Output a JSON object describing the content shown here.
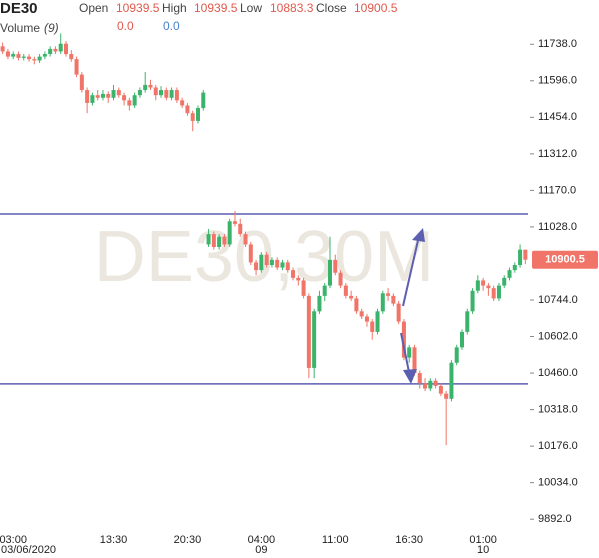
{
  "header": {
    "symbol": "DE30",
    "open_label": "Open",
    "open": "10939.5",
    "high_label": "High",
    "high": "10939.5",
    "low_label": "Low",
    "low": "10883.3",
    "close_label": "Close",
    "close": "10900.5",
    "volume_label": "Volume",
    "volume_period": "(9)",
    "volume_value_1": "0.0",
    "volume_value_2": "0.0"
  },
  "chart_data": {
    "type": "candlestick",
    "watermark": "DE30,30M",
    "up_color": "#3bb36b",
    "down_color": "#f07467",
    "hline_color": "#5c5fb0",
    "ylim": [
      9850,
      11910
    ],
    "yticks": [
      {
        "value": 11738,
        "label": "11738.0"
      },
      {
        "value": 11596,
        "label": "11596.0"
      },
      {
        "value": 11454,
        "label": "11454.0"
      },
      {
        "value": 11312,
        "label": "11312.0"
      },
      {
        "value": 11170,
        "label": "11170.0"
      },
      {
        "value": 11028,
        "label": "11028.0"
      },
      {
        "value": 10744,
        "label": "10744.0"
      },
      {
        "value": 10602,
        "label": "10602.0"
      },
      {
        "value": 10460,
        "label": "10460.0"
      },
      {
        "value": 10318,
        "label": "10318.0"
      },
      {
        "value": 10176,
        "label": "10176.0"
      },
      {
        "value": 10034,
        "label": "10034.0"
      },
      {
        "value": 9892,
        "label": "9892.0"
      }
    ],
    "hlines": [
      11078,
      10418
    ],
    "categories": [
      null,
      null,
      "03:00",
      null,
      null,
      null,
      null,
      null,
      null,
      null,
      null,
      null,
      null,
      null,
      null,
      null,
      null,
      null,
      null,
      null,
      null,
      "13:30",
      null,
      null,
      null,
      null,
      null,
      null,
      null,
      null,
      null,
      null,
      null,
      null,
      null,
      "20:30",
      null,
      null,
      null,
      null,
      null,
      null,
      null,
      null,
      null,
      null,
      null,
      null,
      null,
      "04:00",
      null,
      null,
      null,
      null,
      null,
      null,
      null,
      null,
      null,
      null,
      null,
      null,
      null,
      "11:00",
      null,
      null,
      null,
      null,
      null,
      null,
      null,
      null,
      null,
      null,
      null,
      null,
      null,
      "16:30",
      null,
      null,
      null,
      null,
      null,
      null,
      null,
      null,
      null,
      null,
      null,
      null,
      null,
      "01:00",
      null,
      null,
      null,
      null,
      null,
      null,
      null,
      null
    ],
    "x_sublabels": [
      null,
      null,
      "03/06/2020",
      null,
      null,
      null,
      null,
      null,
      null,
      null,
      null,
      null,
      null,
      null,
      null,
      null,
      null,
      null,
      null,
      null,
      null,
      null,
      null,
      null,
      null,
      null,
      null,
      null,
      null,
      null,
      null,
      null,
      null,
      null,
      null,
      null,
      null,
      null,
      null,
      null,
      null,
      null,
      null,
      null,
      null,
      null,
      null,
      null,
      null,
      "09",
      null,
      null,
      null,
      null,
      null,
      null,
      null,
      null,
      null,
      null,
      null,
      null,
      null,
      null,
      null,
      null,
      null,
      null,
      null,
      null,
      null,
      null,
      null,
      null,
      null,
      null,
      null,
      null,
      null,
      null,
      null,
      null,
      null,
      null,
      null,
      null,
      null,
      null,
      null,
      null,
      null,
      "10",
      null,
      null,
      null,
      null,
      null,
      null,
      null,
      null
    ],
    "candles": [
      [
        11730,
        11745,
        11700,
        11710
      ],
      [
        11710,
        11720,
        11680,
        11690
      ],
      [
        11690,
        11710,
        11680,
        11700
      ],
      [
        11700,
        11710,
        11675,
        11685
      ],
      [
        11685,
        11700,
        11675,
        11690
      ],
      [
        11690,
        11700,
        11670,
        11680
      ],
      [
        11680,
        11690,
        11660,
        11675
      ],
      [
        11675,
        11700,
        11665,
        11690
      ],
      [
        11690,
        11710,
        11680,
        11700
      ],
      [
        11700,
        11730,
        11690,
        11720
      ],
      [
        11720,
        11730,
        11700,
        11710
      ],
      [
        11710,
        11780,
        11700,
        11740
      ],
      [
        11740,
        11750,
        11690,
        11700
      ],
      [
        11700,
        11715,
        11670,
        11680
      ],
      [
        11680,
        11690,
        11610,
        11620
      ],
      [
        11620,
        11630,
        11550,
        11560
      ],
      [
        11560,
        11570,
        11470,
        11510
      ],
      [
        11510,
        11550,
        11500,
        11540
      ],
      [
        11540,
        11560,
        11520,
        11530
      ],
      [
        11530,
        11560,
        11520,
        11545
      ],
      [
        11545,
        11555,
        11510,
        11530
      ],
      [
        11530,
        11580,
        11520,
        11560
      ],
      [
        11560,
        11570,
        11530,
        11540
      ],
      [
        11540,
        11550,
        11500,
        11520
      ],
      [
        11520,
        11530,
        11480,
        11500
      ],
      [
        11500,
        11550,
        11490,
        11540
      ],
      [
        11540,
        11570,
        11530,
        11560
      ],
      [
        11560,
        11630,
        11550,
        11580
      ],
      [
        11580,
        11600,
        11560,
        11570
      ],
      [
        11570,
        11580,
        11520,
        11540
      ],
      [
        11540,
        11575,
        11530,
        11560
      ],
      [
        11560,
        11570,
        11520,
        11530
      ],
      [
        11530,
        11570,
        11520,
        11560
      ],
      [
        11560,
        11570,
        11510,
        11520
      ],
      [
        11520,
        11530,
        11490,
        11500
      ],
      [
        11500,
        11510,
        11460,
        11470
      ],
      [
        11470,
        11480,
        11400,
        11440
      ],
      [
        11440,
        11500,
        11430,
        11490
      ],
      [
        11490,
        11560,
        11480,
        11550
      ],
      [
        10960,
        11020,
        10950,
        11000
      ],
      [
        11000,
        11010,
        10940,
        10950
      ],
      [
        10950,
        11000,
        10940,
        10990
      ],
      [
        10990,
        11000,
        10950,
        10960
      ],
      [
        10960,
        11060,
        10950,
        11050
      ],
      [
        11050,
        11090,
        11030,
        11040
      ],
      [
        11040,
        11060,
        10990,
        11000
      ],
      [
        11000,
        11010,
        10950,
        10960
      ],
      [
        10960,
        10970,
        10880,
        10890
      ],
      [
        10890,
        10900,
        10840,
        10860
      ],
      [
        10860,
        10930,
        10850,
        10920
      ],
      [
        10920,
        10930,
        10870,
        10880
      ],
      [
        10880,
        10910,
        10870,
        10900
      ],
      [
        10900,
        10910,
        10860,
        10870
      ],
      [
        10870,
        10900,
        10860,
        10890
      ],
      [
        10890,
        10900,
        10850,
        10860
      ],
      [
        10860,
        10870,
        10820,
        10830
      ],
      [
        10830,
        10840,
        10800,
        10820
      ],
      [
        10820,
        10830,
        10750,
        10760
      ],
      [
        10760,
        10770,
        10440,
        10480
      ],
      [
        10480,
        10710,
        10440,
        10700
      ],
      [
        10700,
        10780,
        10690,
        10760
      ],
      [
        10760,
        10810,
        10740,
        10800
      ],
      [
        10800,
        10990,
        10790,
        10900
      ],
      [
        10900,
        10920,
        10840,
        10850
      ],
      [
        10850,
        10860,
        10790,
        10800
      ],
      [
        10800,
        10810,
        10750,
        10760
      ],
      [
        10760,
        10780,
        10740,
        10750
      ],
      [
        10750,
        10760,
        10690,
        10700
      ],
      [
        10700,
        10710,
        10670,
        10680
      ],
      [
        10680,
        10690,
        10640,
        10660
      ],
      [
        10660,
        10670,
        10590,
        10620
      ],
      [
        10620,
        10710,
        10610,
        10700
      ],
      [
        10700,
        10780,
        10690,
        10770
      ],
      [
        10770,
        10790,
        10740,
        10760
      ],
      [
        10760,
        10770,
        10720,
        10730
      ],
      [
        10730,
        10740,
        10650,
        10660
      ],
      [
        10660,
        10670,
        10510,
        10520
      ],
      [
        10520,
        10570,
        10500,
        10560
      ],
      [
        10560,
        10570,
        10450,
        10460
      ],
      [
        10460,
        10470,
        10400,
        10420
      ],
      [
        10420,
        10440,
        10390,
        10400
      ],
      [
        10400,
        10440,
        10390,
        10430
      ],
      [
        10430,
        10440,
        10400,
        10410
      ],
      [
        10410,
        10420,
        10370,
        10380
      ],
      [
        10380,
        10390,
        10180,
        10360
      ],
      [
        10360,
        10510,
        10350,
        10500
      ],
      [
        10500,
        10570,
        10490,
        10560
      ],
      [
        10560,
        10630,
        10550,
        10620
      ],
      [
        10620,
        10710,
        10610,
        10700
      ],
      [
        10700,
        10790,
        10690,
        10780
      ],
      [
        10780,
        10840,
        10770,
        10820
      ],
      [
        10820,
        10830,
        10780,
        10800
      ],
      [
        10800,
        10810,
        10760,
        10790
      ],
      [
        10790,
        10800,
        10740,
        10750
      ],
      [
        10750,
        10810,
        10740,
        10800
      ],
      [
        10800,
        10840,
        10790,
        10830
      ],
      [
        10830,
        10870,
        10820,
        10860
      ],
      [
        10860,
        10890,
        10850,
        10880
      ],
      [
        10880,
        10960,
        10870,
        10939.5
      ],
      [
        10939.5,
        10939.5,
        10883.3,
        10900.5
      ]
    ]
  }
}
